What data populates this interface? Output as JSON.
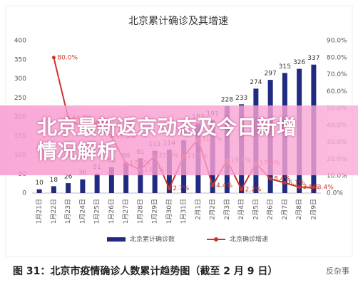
{
  "chart_data": {
    "type": "bar",
    "title": "北京累计确诊及其增速",
    "categories": [
      "1月21日",
      "1月22日",
      "1月23日",
      "1月24日",
      "1月25日",
      "1月26日",
      "1月27日",
      "1月28日",
      "1月29日",
      "1月30日",
      "1月31日",
      "2月1日",
      "2月2日",
      "2月3日",
      "2月4日",
      "2月5日",
      "2月6日",
      "2月7日",
      "2月8日",
      "2月9日"
    ],
    "series": [
      {
        "name": "北京累计确诊数",
        "type": "bar",
        "color": "#1f2a80",
        "values": [
          10,
          18,
          26,
          36,
          51,
          68,
          80,
          91,
          111,
          114,
          139,
          183,
          191,
          228,
          233,
          274,
          297,
          315,
          326,
          337
        ]
      },
      {
        "name": "北京确诊增速",
        "type": "line",
        "axis": "y2",
        "color": "#c9352b",
        "values": [
          null,
          80.0,
          44.4,
          38.5,
          41.7,
          33.3,
          17.6,
          13.8,
          22.0,
          2.7,
          21.9,
          31.7,
          4.4,
          19.4,
          2.2,
          17.6,
          8.4,
          6.1,
          3.5,
          3.4
        ],
        "value_labels": [
          null,
          "80.0%",
          "44.4%",
          "38.5%",
          "41.7%",
          "33.3%",
          "17.6%",
          "13.8%",
          "22.0%",
          "2.7%",
          "21.9%",
          "31.7%",
          "4.4%",
          "19.4%",
          "2.2%",
          "17.6%",
          "8.4%",
          "6.1%",
          "3.5%",
          "3.4%"
        ]
      }
    ],
    "ylim": [
      0,
      400
    ],
    "yticks": [
      0,
      50,
      100,
      150,
      200,
      250,
      300,
      350,
      400
    ],
    "y2lim": [
      0,
      90
    ],
    "y2ticks": [
      {
        "value": 0,
        "label": "0.0%"
      },
      {
        "value": 10,
        "label": "10.0%"
      },
      {
        "value": 20,
        "label": "20.0%"
      },
      {
        "value": 30,
        "label": "30.0%"
      },
      {
        "value": 40,
        "label": "40.0%"
      },
      {
        "value": 50,
        "label": "50.0%"
      },
      {
        "value": 60,
        "label": "60.0%"
      },
      {
        "value": 70,
        "label": "70.0%"
      },
      {
        "value": 80,
        "label": "80.0%"
      },
      {
        "value": 90,
        "label": "90.0%"
      }
    ],
    "legend": "bottom"
  },
  "overlay_title": "北京最新返京动态及今日新增情况解析",
  "caption": "图 31：北京市疫情确诊人数累计趋势图（截至 2 月 9 日）",
  "watermark": "反杂事"
}
